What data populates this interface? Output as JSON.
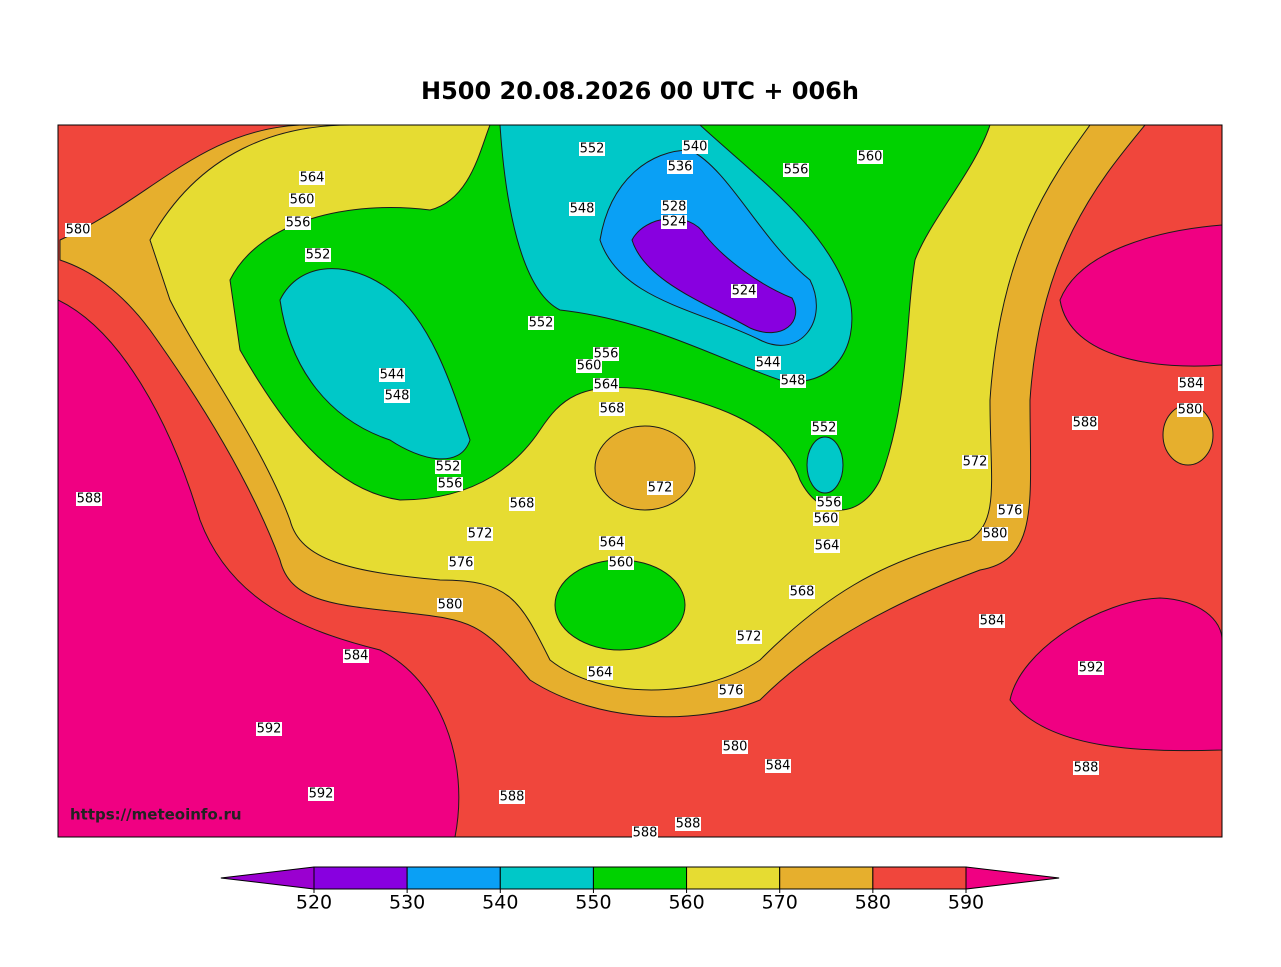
{
  "title": "H500  20.08.2026 00 UTC + 006h",
  "watermark": "https://meteoinfo.ru",
  "colorbar": {
    "ticks": [
      520,
      530,
      540,
      550,
      560,
      570,
      580,
      590
    ],
    "colors": [
      "#9a00d0",
      "#8800e0",
      "#0aa0f5",
      "#00c8c8",
      "#00d200",
      "#e6dc32",
      "#e6af2d",
      "#f0463c",
      "#f00082"
    ]
  },
  "contour_labels": [
    "580",
    "564",
    "560",
    "556",
    "552",
    "552",
    "540",
    "536",
    "548",
    "528",
    "524",
    "524",
    "556",
    "560",
    "552",
    "556",
    "560",
    "564",
    "568",
    "544",
    "548",
    "548",
    "544",
    "552",
    "552",
    "556",
    "572",
    "568",
    "572",
    "576",
    "564",
    "560",
    "580",
    "556",
    "560",
    "564",
    "568",
    "572",
    "564",
    "576",
    "580",
    "584",
    "588",
    "588",
    "588",
    "592",
    "592",
    "584",
    "588",
    "572",
    "576",
    "580",
    "584",
    "592",
    "588",
    "588",
    "584",
    "580"
  ]
}
